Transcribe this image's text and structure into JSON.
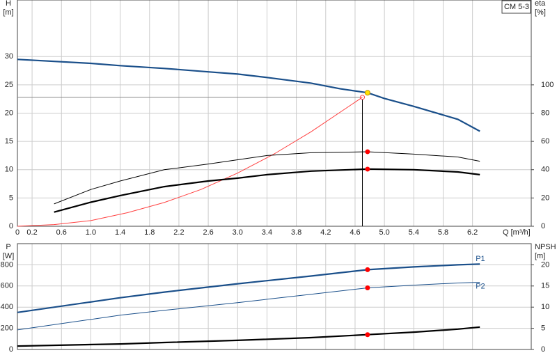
{
  "chart_data": [
    {
      "type": "line",
      "legend_box": "CM 5-3",
      "ylabel": [
        "H",
        "[m]"
      ],
      "y2label": [
        "eta",
        "[%]"
      ],
      "xlabel": "Q [m³/h]",
      "xlim": [
        0,
        7.0
      ],
      "xticks": [
        0,
        0.2,
        0.6,
        {
          "value": 1,
          "label": "1.0"
        },
        1.4,
        1.8,
        2.2,
        2.6,
        {
          "value": 3,
          "label": "3.0"
        },
        3.4,
        3.8,
        4.2,
        4.6,
        {
          "value": 5,
          "label": "5.0"
        },
        5.4,
        5.8,
        6.2
      ],
      "ylim": [
        0,
        40
      ],
      "yticks": [
        0,
        5,
        10,
        15,
        20,
        25,
        30
      ],
      "y2lim": [
        0,
        160
      ],
      "y2ticks": [
        0,
        20,
        40,
        60,
        80,
        100
      ],
      "grid": true,
      "series": [
        {
          "color": "#1a4f8a",
          "width": 2.2,
          "axis": "y",
          "x": [
            0,
            1,
            1.4,
            2,
            2.6,
            3,
            3.4,
            4,
            4.4,
            4.77,
            5,
            5.4,
            6,
            6.3
          ],
          "values": [
            29.5,
            28.8,
            28.4,
            27.9,
            27.3,
            26.9,
            26.3,
            25.3,
            24.3,
            23.6,
            22.6,
            21.2,
            18.9,
            16.8
          ]
        },
        {
          "color": "#ff4040",
          "width": 1,
          "axis": "y",
          "x": [
            0,
            0.5,
            1,
            1.5,
            2,
            2.5,
            3,
            3.5,
            4,
            4.7
          ],
          "values": [
            0,
            0.3,
            1.0,
            2.4,
            4.2,
            6.5,
            9.4,
            12.8,
            16.7,
            22.8
          ]
        },
        {
          "color": "#000000",
          "width": 1,
          "axis": "y2",
          "x": [
            0.5,
            1,
            1.4,
            2,
            2.6,
            3,
            3.4,
            4,
            4.77,
            5.4,
            6,
            6.3
          ],
          "values": [
            15.8,
            26,
            32,
            40,
            44,
            47,
            50,
            52,
            52.7,
            51,
            49,
            46
          ]
        },
        {
          "color": "#000000",
          "width": 2.2,
          "axis": "y2",
          "x": [
            0.5,
            1,
            1.4,
            2,
            2.6,
            3,
            3.4,
            4,
            4.77,
            5.4,
            6,
            6.3
          ],
          "values": [
            10,
            17,
            21.7,
            28,
            32,
            34,
            36.5,
            39,
            40.4,
            40,
            38.4,
            36.5
          ]
        }
      ],
      "operating_point": {
        "x": 4.7,
        "y": 22.8
      },
      "points": [
        {
          "x": 4.77,
          "y": 23.6,
          "axis": "y",
          "color": "#ffe000"
        },
        {
          "x": 4.77,
          "y": 52.7,
          "axis": "y2",
          "color": "#ff0000"
        },
        {
          "x": 4.77,
          "y": 40.4,
          "axis": "y2",
          "color": "#ff0000"
        }
      ]
    },
    {
      "type": "line",
      "ylabel": [
        "P",
        "[W]"
      ],
      "y2label": [
        "NPSH",
        "[m]"
      ],
      "xlim": [
        0,
        7.0
      ],
      "ylim": [
        0,
        1000
      ],
      "yticks": [
        0,
        200,
        400,
        600,
        800
      ],
      "y2lim": [
        0,
        25
      ],
      "y2ticks": [
        0,
        5,
        10,
        15,
        20
      ],
      "grid": true,
      "series": [
        {
          "name": "P1",
          "color": "#1a4f8a",
          "width": 2.2,
          "axis": "y",
          "x": [
            0,
            1.4,
            2,
            3,
            4,
            4.77,
            5.4,
            6,
            6.3
          ],
          "values": [
            350,
            489,
            542,
            621,
            694,
            754,
            780,
            800,
            807
          ]
        },
        {
          "name": "P2",
          "color": "#1a4f8a",
          "width": 1,
          "axis": "y",
          "x": [
            0,
            1.4,
            2,
            3,
            4,
            4.77,
            5.4,
            6,
            6.3
          ],
          "values": [
            185,
            324,
            370,
            443,
            522,
            582,
            608,
            628,
            635
          ]
        },
        {
          "color": "#000000",
          "width": 2.2,
          "axis": "y2",
          "x": [
            0,
            1.4,
            2,
            3,
            4,
            4.77,
            5.4,
            6,
            6.3
          ],
          "values": [
            0.8,
            1.3,
            1.65,
            2.15,
            2.8,
            3.5,
            4.1,
            4.8,
            5.3
          ]
        }
      ],
      "points": [
        {
          "x": 4.77,
          "y": 754,
          "axis": "y",
          "color": "#ff0000"
        },
        {
          "x": 4.77,
          "y": 582,
          "axis": "y",
          "color": "#ff0000"
        },
        {
          "x": 4.77,
          "y": 3.5,
          "axis": "y2",
          "color": "#ff0000"
        }
      ]
    }
  ]
}
